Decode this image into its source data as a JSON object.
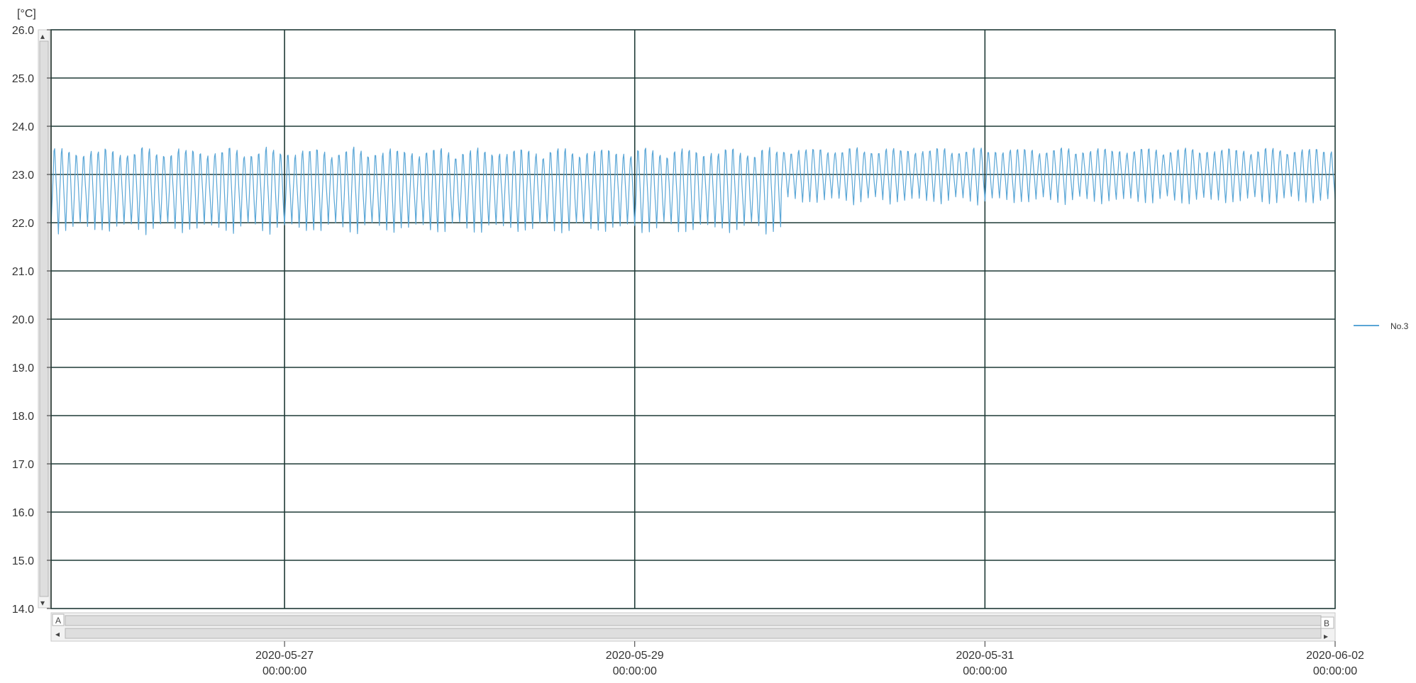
{
  "chart_data": {
    "type": "line",
    "unit_label": "[°C]",
    "ylim": [
      14.0,
      26.0
    ],
    "y_ticks": [
      "26.0",
      "25.0",
      "24.0",
      "23.0",
      "22.0",
      "21.0",
      "20.0",
      "19.0",
      "18.0",
      "17.0",
      "16.0",
      "15.0",
      "14.0"
    ],
    "xlim": [
      "2020-05-25T16:00",
      "2020-06-02T00:00"
    ],
    "x_ticks": [
      {
        "date": "2020-05-27",
        "time": "00:00:00"
      },
      {
        "date": "2020-05-29",
        "time": "00:00:00"
      },
      {
        "date": "2020-05-31",
        "time": "00:00:00"
      },
      {
        "date": "2020-06-02",
        "time": "00:00:00"
      }
    ],
    "grid": true,
    "legend_position": "right",
    "series": [
      {
        "name": "No.3",
        "color": "#5aa6d6",
        "x_start": "2020-05-25T16:00",
        "x_end": "2020-06-02T00:00",
        "pattern": "oscillating, ~1 h period",
        "segments": [
          {
            "from": "2020-05-25T16:00",
            "to": "2020-05-29T20:00",
            "min": 21.8,
            "max": 23.7
          },
          {
            "from": "2020-05-29T20:00",
            "to": "2020-06-02T00:00",
            "min": 22.4,
            "max": 23.65
          }
        ]
      }
    ]
  },
  "scrollbar": {
    "start_label": "A",
    "end_label": "B",
    "left_arrow": "◂",
    "right_arrow": "▸",
    "up_arrow": "▴",
    "down_arrow": "▾"
  }
}
